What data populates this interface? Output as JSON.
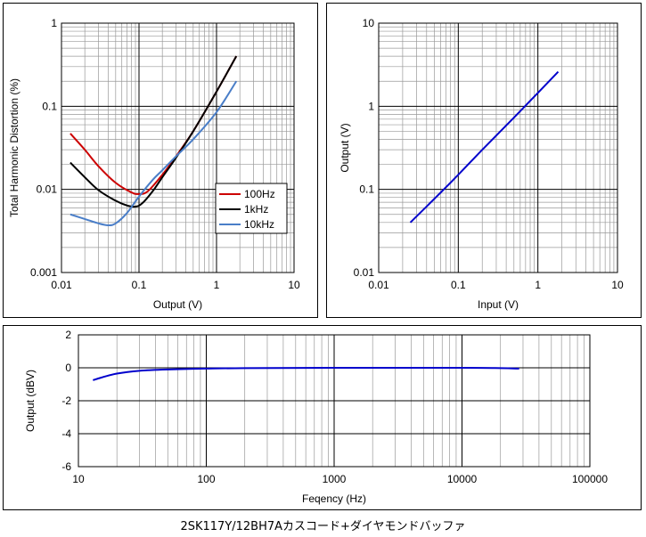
{
  "caption": "2SK117Y/12BH7Aカスコード+ダイヤモンドバッファ",
  "chart_data": [
    {
      "type": "line",
      "xlabel": "Output (V)",
      "ylabel": "Total Harmonic Distortion (%)",
      "xscale": "log",
      "yscale": "log",
      "xlim": [
        0.01,
        10
      ],
      "ylim": [
        0.001,
        1
      ],
      "xticks": [
        "0.01",
        "0.1",
        "1",
        "10"
      ],
      "yticks": [
        "0.001",
        "0.01",
        "0.1",
        "1"
      ],
      "grid": true,
      "legend_position": "lower-right",
      "series": [
        {
          "name": "100Hz",
          "color": "#cc0000",
          "x": [
            0.013,
            0.02,
            0.03,
            0.05,
            0.08,
            0.1,
            0.13,
            0.2,
            0.3,
            0.5,
            1.0,
            1.8
          ],
          "y": [
            0.047,
            0.03,
            0.019,
            0.012,
            0.0092,
            0.0088,
            0.0095,
            0.015,
            0.025,
            0.05,
            0.15,
            0.4
          ]
        },
        {
          "name": "1kHz",
          "color": "#000000",
          "x": [
            0.013,
            0.02,
            0.03,
            0.05,
            0.07,
            0.09,
            0.11,
            0.15,
            0.2,
            0.3,
            0.5,
            1.0,
            1.8
          ],
          "y": [
            0.021,
            0.014,
            0.0098,
            0.0073,
            0.0064,
            0.0062,
            0.0068,
            0.0095,
            0.014,
            0.024,
            0.05,
            0.15,
            0.4
          ]
        },
        {
          "name": "10kHz",
          "color": "#4a7ec8",
          "x": [
            0.013,
            0.02,
            0.03,
            0.04,
            0.05,
            0.07,
            0.1,
            0.15,
            0.2,
            0.3,
            0.5,
            1.0,
            1.8
          ],
          "y": [
            0.005,
            0.0044,
            0.0039,
            0.0037,
            0.0039,
            0.0052,
            0.0082,
            0.013,
            0.017,
            0.025,
            0.04,
            0.085,
            0.2
          ]
        }
      ]
    },
    {
      "type": "line",
      "xlabel": "Input (V)",
      "ylabel": "Output (V)",
      "xscale": "log",
      "yscale": "log",
      "xlim": [
        0.01,
        10
      ],
      "ylim": [
        0.01,
        10
      ],
      "xticks": [
        "0.01",
        "0.1",
        "1",
        "10"
      ],
      "yticks": [
        "0.01",
        "0.1",
        "1",
        "10"
      ],
      "grid": true,
      "series": [
        {
          "color": "#0000cc",
          "x": [
            0.025,
            0.05,
            0.1,
            0.2,
            0.5,
            1.0,
            1.8
          ],
          "y": [
            0.04,
            0.077,
            0.15,
            0.3,
            0.73,
            1.45,
            2.6
          ]
        }
      ]
    },
    {
      "type": "line",
      "xlabel": "Feqency (Hz)",
      "ylabel": "Output (dBV)",
      "xscale": "log",
      "yscale": "linear",
      "xlim": [
        10,
        100000
      ],
      "ylim": [
        -6,
        2
      ],
      "xticks": [
        "10",
        "100",
        "1000",
        "10000",
        "100000"
      ],
      "yticks": [
        "2",
        "0",
        "-2",
        "-4",
        "-6"
      ],
      "grid": true,
      "series": [
        {
          "color": "#0000cc",
          "x": [
            13,
            15,
            20,
            30,
            50,
            100,
            200,
            1000,
            10000,
            20000,
            28000
          ],
          "y": [
            -0.75,
            -0.6,
            -0.35,
            -0.18,
            -0.1,
            -0.05,
            -0.02,
            0,
            0,
            -0.02,
            -0.05
          ]
        }
      ]
    }
  ]
}
